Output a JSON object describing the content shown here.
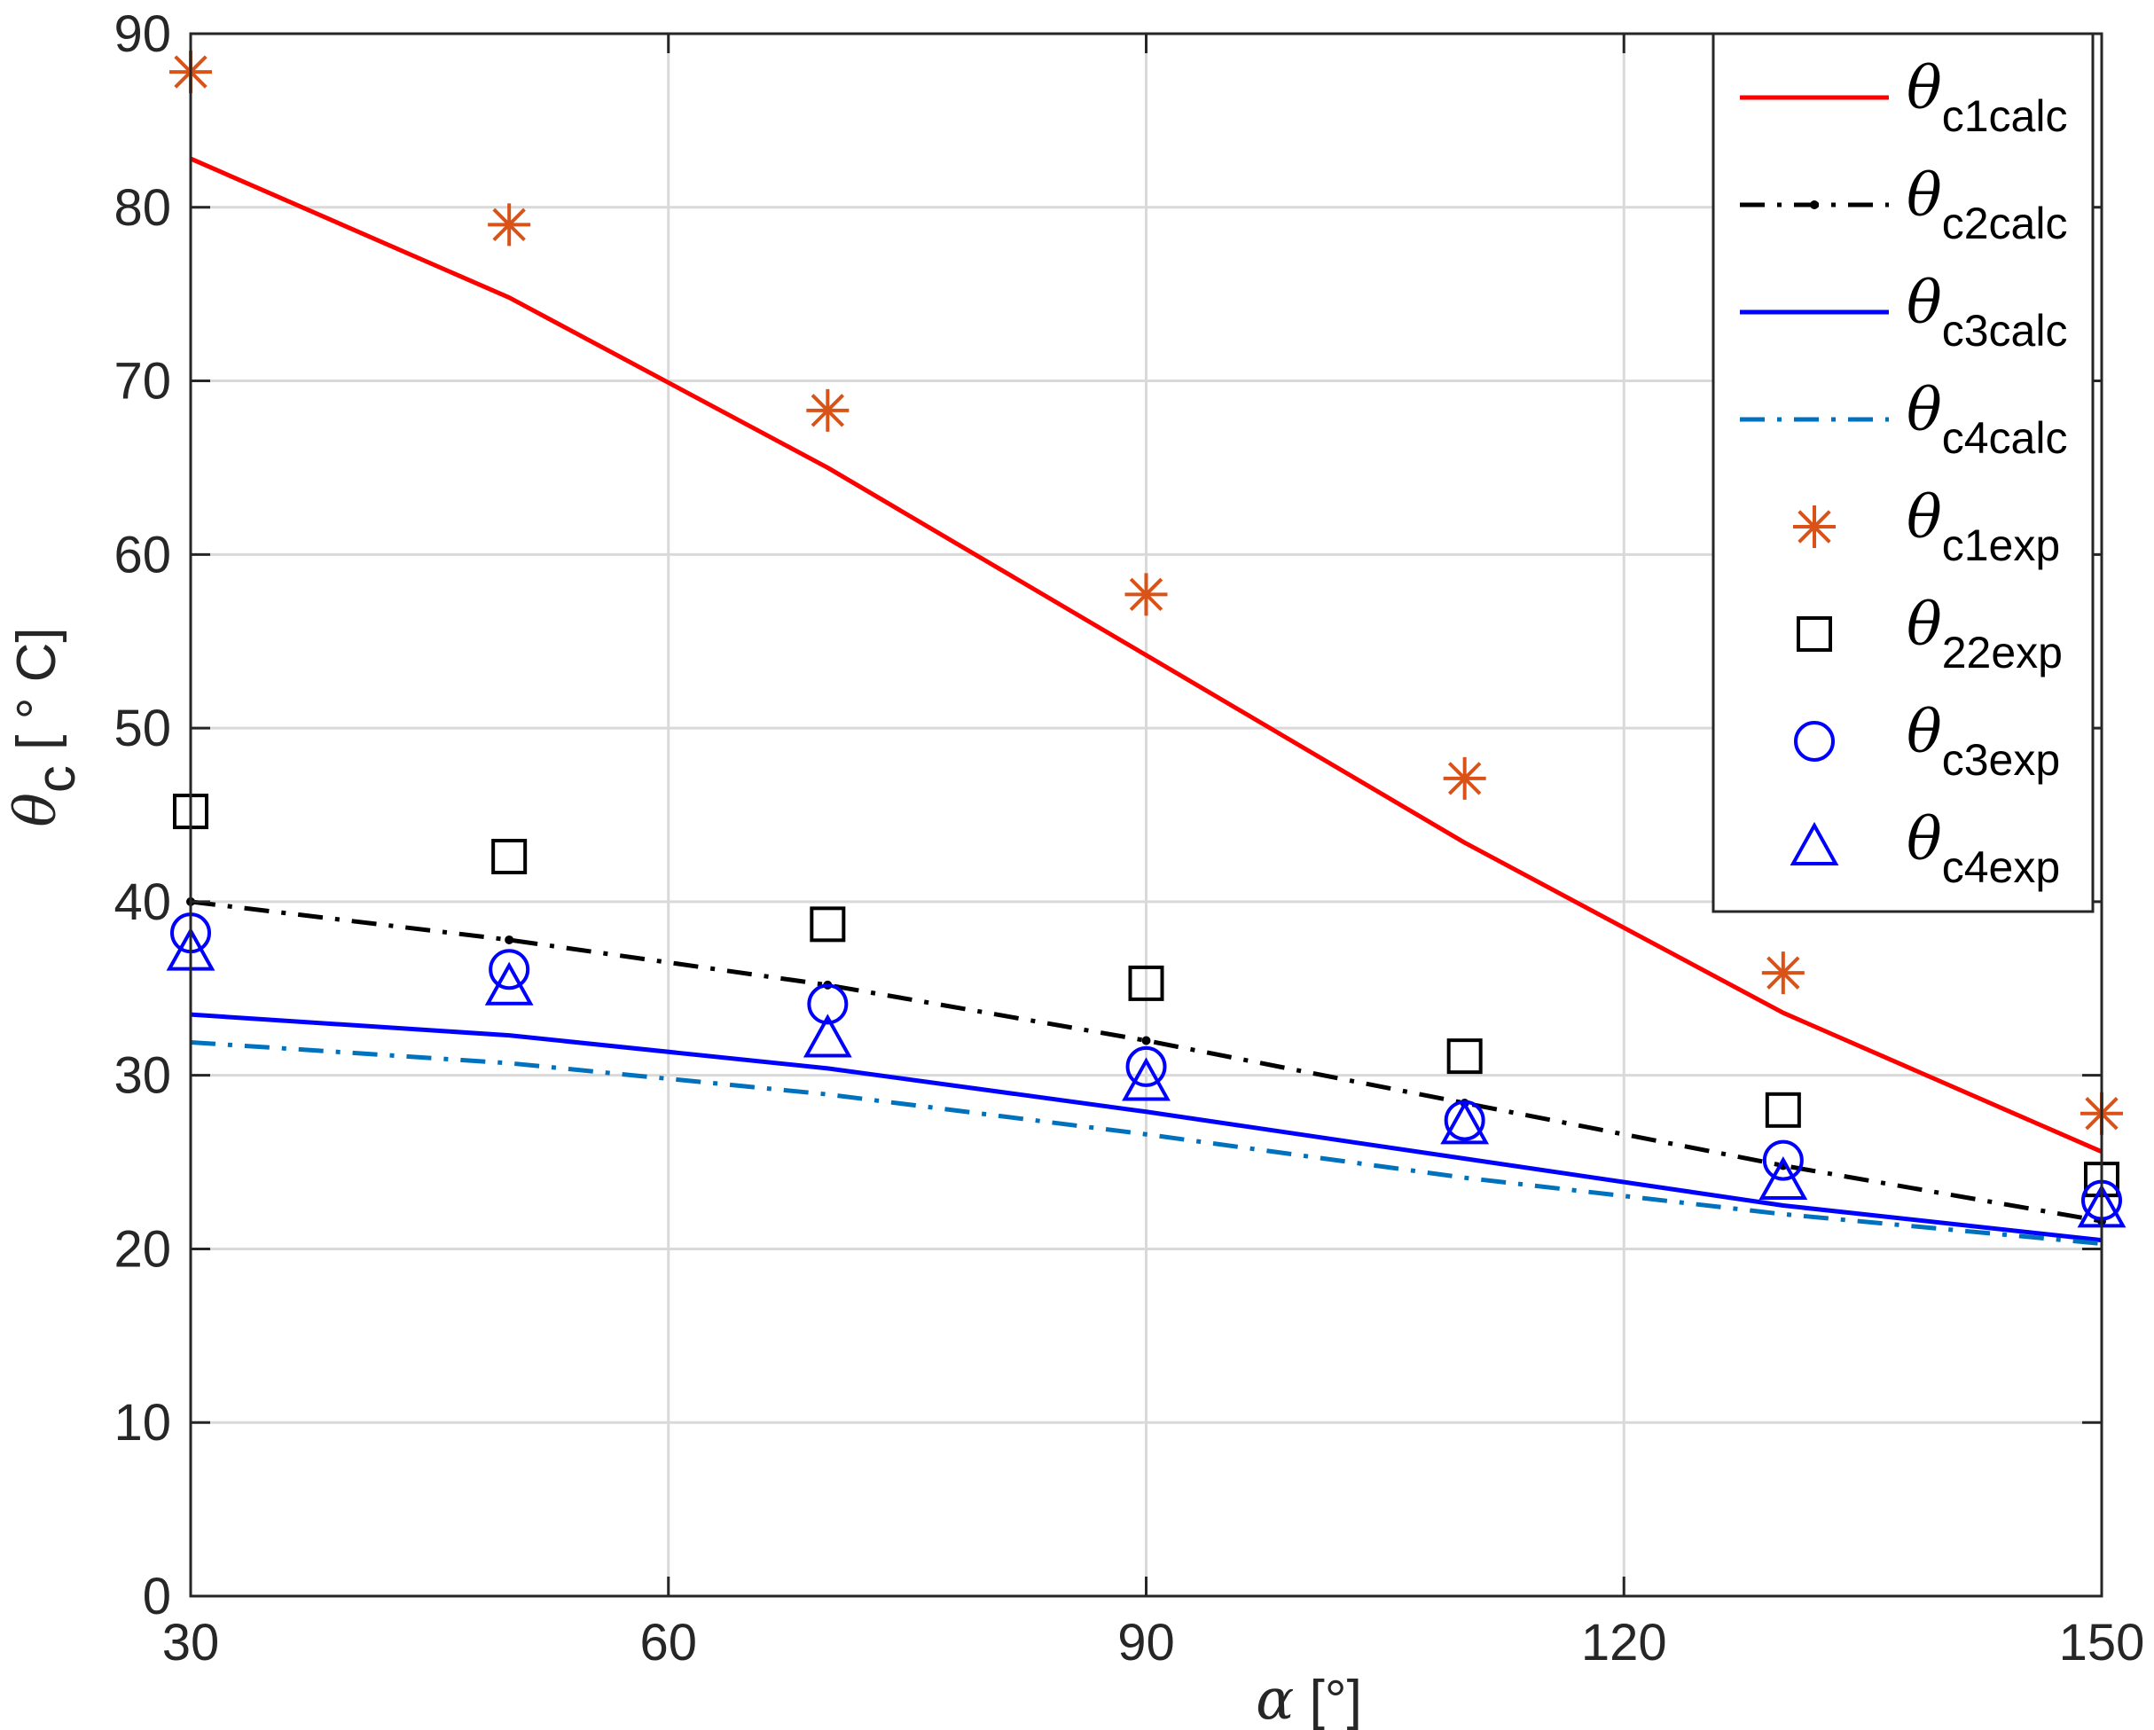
{
  "chart_data": {
    "type": "line",
    "title": "",
    "xlabel": {
      "symbol": "α",
      "unit": " [°]"
    },
    "ylabel": {
      "symbol": "θ",
      "sub": "c",
      "unit": " [ ° C]"
    },
    "xlim": [
      30,
      150
    ],
    "ylim": [
      0,
      90
    ],
    "xticks": [
      30,
      60,
      90,
      120,
      150
    ],
    "yticks": [
      0,
      10,
      20,
      30,
      40,
      50,
      60,
      70,
      80,
      90
    ],
    "grid": true,
    "legend_position": "top-right",
    "x": [
      30,
      50,
      70,
      90,
      110,
      130,
      150
    ],
    "series": [
      {
        "name": "θ",
        "sub": "c1calc",
        "kind": "line",
        "style": "solid",
        "color": "#ff0000",
        "values": [
          82.8,
          74.8,
          65.0,
          54.2,
          43.4,
          33.6,
          25.6
        ]
      },
      {
        "name": "θ",
        "sub": "c2calc",
        "kind": "line",
        "style": "dashdot-dot",
        "color": "#000000",
        "values": [
          40.0,
          37.8,
          35.2,
          32.0,
          28.4,
          24.8,
          21.6
        ]
      },
      {
        "name": "θ",
        "sub": "c3calc",
        "kind": "line",
        "style": "solid",
        "color": "#0000ff",
        "values": [
          33.5,
          32.3,
          30.4,
          27.9,
          25.2,
          22.5,
          20.5
        ]
      },
      {
        "name": "θ",
        "sub": "c4calc",
        "kind": "line",
        "style": "dashdot",
        "color": "#0072bd",
        "values": [
          31.9,
          30.7,
          28.9,
          26.6,
          24.1,
          22.0,
          20.3
        ]
      },
      {
        "name": "θ",
        "sub": "c1exp",
        "kind": "marker",
        "marker": "asterisk",
        "color": "#d95319",
        "values": [
          87.8,
          79.0,
          68.3,
          57.7,
          47.1,
          35.9,
          27.8
        ]
      },
      {
        "name": "θ",
        "sub": "22exp",
        "kind": "marker",
        "marker": "square",
        "color": "#000000",
        "values": [
          45.2,
          42.6,
          38.7,
          35.3,
          31.1,
          28.0,
          24.0
        ]
      },
      {
        "name": "θ",
        "sub": "c3exp",
        "kind": "marker",
        "marker": "circle",
        "color": "#0000ff",
        "values": [
          38.2,
          36.1,
          34.1,
          30.5,
          27.4,
          25.1,
          22.8
        ]
      },
      {
        "name": "θ",
        "sub": "c4exp",
        "kind": "marker",
        "marker": "triangle",
        "color": "#0000ff",
        "values": [
          37.0,
          35.0,
          32.0,
          29.5,
          27.0,
          23.8,
          22.2
        ]
      }
    ]
  }
}
